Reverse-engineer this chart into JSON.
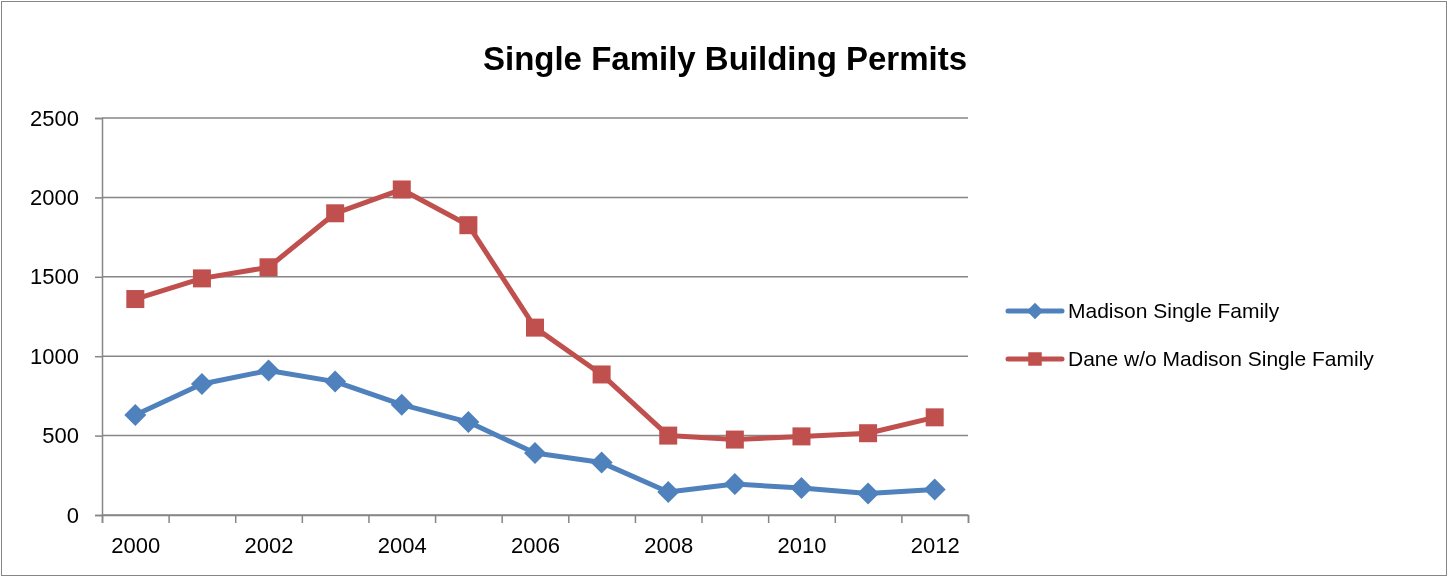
{
  "chart_data": {
    "type": "line",
    "title": "Single Family Building Permits",
    "categories": [
      "2000",
      null,
      "2002",
      null,
      "2004",
      null,
      "2006",
      null,
      "2008",
      null,
      "2010",
      null,
      "2012"
    ],
    "series": [
      {
        "name": "Madison Single Family",
        "color": "#4f81bd",
        "marker": "diamond",
        "values": [
          630,
          825,
          910,
          840,
          695,
          585,
          390,
          330,
          145,
          195,
          170,
          135,
          160
        ]
      },
      {
        "name": "Dane w/o Madison Single Family",
        "color": "#c0504d",
        "marker": "square",
        "values": [
          1360,
          1490,
          1560,
          1900,
          2050,
          1825,
          1180,
          885,
          500,
          475,
          495,
          515,
          615
        ]
      }
    ],
    "ylim": [
      0,
      2500
    ],
    "yticks": [
      0,
      500,
      1000,
      1500,
      2000,
      2500
    ],
    "grid": "y",
    "legend": "right",
    "line_style": "solid"
  }
}
